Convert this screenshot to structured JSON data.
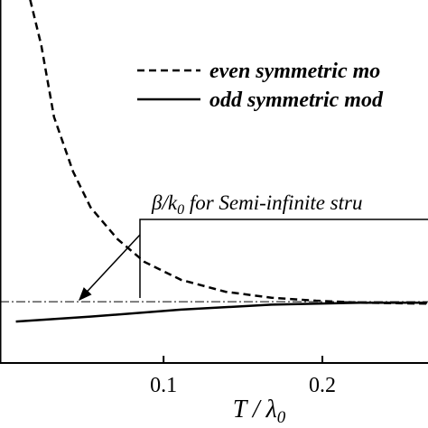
{
  "chart_data": {
    "type": "line",
    "xlim": [
      -0.003,
      0.2665
    ],
    "ylim": [
      0.573,
      4.227
    ],
    "xticks": [
      0.1,
      0.2
    ],
    "x_label": {
      "text": "T / λ",
      "subscript": "0"
    },
    "series": [
      {
        "name": "even symmetric mo",
        "color": "#000000",
        "dash": "dashed",
        "x": [
          0.016,
          0.023,
          0.031,
          0.043,
          0.054,
          0.071,
          0.088,
          0.111,
          0.139,
          0.168,
          0.196,
          0.224,
          0.266
        ],
        "values": [
          4.23,
          3.77,
          3.05,
          2.5,
          2.14,
          1.82,
          1.59,
          1.41,
          1.29,
          1.23,
          1.2,
          1.18,
          1.17
        ]
      },
      {
        "name": "odd symmetric mod",
        "color": "#000000",
        "dash": "solid",
        "x": [
          0.007,
          0.054,
          0.111,
          0.168,
          0.224,
          0.266
        ],
        "values": [
          0.99,
          1.04,
          1.11,
          1.16,
          1.18,
          1.18
        ]
      }
    ],
    "reference_line": {
      "value": 1.19,
      "label": {
        "text": "β/k",
        "subscript": "0",
        "rest": " for Semi-infinite stru"
      }
    }
  }
}
